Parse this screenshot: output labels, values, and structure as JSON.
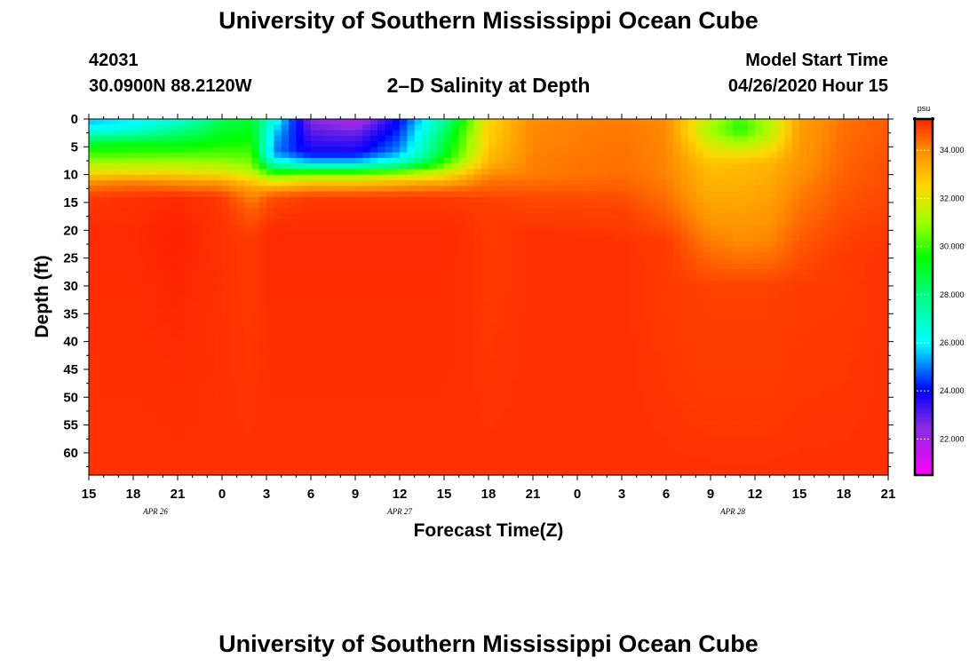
{
  "header": {
    "title_top": "University of Southern Mississippi Ocean Cube",
    "station_id": "42031",
    "station_coords": "30.0900N 88.2120W",
    "chart_title": "2–D Salinity at Depth",
    "model_start_label": "Model Start Time",
    "model_start_value": "04/26/2020 Hour 15",
    "title_bottom": "University of Southern Mississippi Ocean Cube"
  },
  "chart_data": {
    "type": "heatmap",
    "title": "2–D Salinity at Depth",
    "xlabel": "Forecast Time(Z)",
    "ylabel": "Depth (ft)",
    "x_ticks": [
      "15",
      "18",
      "21",
      "0",
      "3",
      "6",
      "9",
      "12",
      "15",
      "18",
      "21",
      "0",
      "3",
      "6",
      "9",
      "12",
      "15",
      "18",
      "21"
    ],
    "x_hours": [
      0,
      3,
      6,
      9,
      12,
      15,
      18,
      21,
      24,
      27,
      30,
      33,
      36,
      39,
      42,
      45,
      48,
      51,
      54
    ],
    "x_range_hours": [
      0,
      54
    ],
    "date_labels": [
      {
        "text": "APR 26",
        "hour": 4.5
      },
      {
        "text": "APR 27",
        "hour": 21
      },
      {
        "text": "APR 28",
        "hour": 43.5
      }
    ],
    "y_ticks": [
      0,
      5,
      10,
      15,
      20,
      25,
      30,
      35,
      40,
      45,
      50,
      55,
      60
    ],
    "y_range_ft": [
      0,
      64
    ],
    "colorbar": {
      "unit": "psu",
      "ticks": [
        "34.000",
        "32.000",
        "30.000",
        "28.000",
        "26.000",
        "24.000",
        "22.000"
      ],
      "tick_values": [
        34,
        32,
        30,
        28,
        26,
        24,
        22
      ],
      "range": [
        20.5,
        35.3
      ],
      "stops": [
        {
          "v": 20.5,
          "color": "#ff00ff"
        },
        {
          "v": 22.5,
          "color": "#8a2be2"
        },
        {
          "v": 24.0,
          "color": "#0000ff"
        },
        {
          "v": 26.0,
          "color": "#00ffff"
        },
        {
          "v": 28.0,
          "color": "#00ff80"
        },
        {
          "v": 29.5,
          "color": "#00ff00"
        },
        {
          "v": 31.0,
          "color": "#a0ff00"
        },
        {
          "v": 32.5,
          "color": "#ffd700"
        },
        {
          "v": 34.0,
          "color": "#ff8c00"
        },
        {
          "v": 35.3,
          "color": "#ff2200"
        }
      ]
    },
    "columns": [
      {
        "h": 0,
        "p": [
          [
            0,
            25.5
          ],
          [
            2,
            26.2
          ],
          [
            4,
            28.8
          ],
          [
            7,
            30.5
          ],
          [
            9.5,
            32.2
          ],
          [
            11.5,
            34.0
          ],
          [
            14,
            35.0
          ],
          [
            20,
            35.2
          ],
          [
            64,
            35.1
          ]
        ]
      },
      {
        "h": 3,
        "p": [
          [
            0,
            25.8
          ],
          [
            2,
            26.6
          ],
          [
            4,
            29.0
          ],
          [
            7,
            30.5
          ],
          [
            9.5,
            32.3
          ],
          [
            11.5,
            34.2
          ],
          [
            14,
            35.1
          ],
          [
            20,
            35.2
          ],
          [
            64,
            35.1
          ]
        ]
      },
      {
        "h": 6,
        "p": [
          [
            0,
            26.5
          ],
          [
            3,
            28.5
          ],
          [
            6,
            30.0
          ],
          [
            9,
            31.8
          ],
          [
            11.5,
            34.0
          ],
          [
            14,
            35.2
          ],
          [
            20,
            35.3
          ],
          [
            64,
            35.1
          ]
        ]
      },
      {
        "h": 9,
        "p": [
          [
            0,
            28.5
          ],
          [
            4,
            29.5
          ],
          [
            7,
            30.5
          ],
          [
            9.5,
            32.0
          ],
          [
            11.5,
            33.8
          ],
          [
            14,
            35.0
          ],
          [
            20,
            35.1
          ],
          [
            64,
            35.1
          ]
        ]
      },
      {
        "h": 11,
        "p": [
          [
            0,
            29.0
          ],
          [
            5,
            29.8
          ],
          [
            9,
            31.0
          ],
          [
            11,
            32.6
          ],
          [
            13,
            33.8
          ],
          [
            16,
            34.5
          ],
          [
            21,
            35.0
          ],
          [
            64,
            35.1
          ]
        ]
      },
      {
        "h": 12.5,
        "p": [
          [
            0,
            26.5
          ],
          [
            3,
            25.5
          ],
          [
            6,
            25.0
          ],
          [
            8,
            26.8
          ],
          [
            10,
            30.5
          ],
          [
            12,
            33.0
          ],
          [
            14,
            34.8
          ],
          [
            20,
            35.2
          ],
          [
            64,
            35.1
          ]
        ]
      },
      {
        "h": 15,
        "p": [
          [
            0,
            22.5
          ],
          [
            3,
            23.2
          ],
          [
            6,
            23.8
          ],
          [
            8,
            25.8
          ],
          [
            10,
            31.0
          ],
          [
            12,
            33.5
          ],
          [
            14,
            35.0
          ],
          [
            20,
            35.2
          ],
          [
            64,
            35.1
          ]
        ]
      },
      {
        "h": 18,
        "p": [
          [
            0,
            21.8
          ],
          [
            3,
            23.0
          ],
          [
            6,
            23.8
          ],
          [
            8,
            25.8
          ],
          [
            10,
            31.0
          ],
          [
            12,
            33.5
          ],
          [
            14,
            35.0
          ],
          [
            20,
            35.2
          ],
          [
            64,
            35.1
          ]
        ]
      },
      {
        "h": 21,
        "p": [
          [
            0,
            24.0
          ],
          [
            3,
            24.5
          ],
          [
            6,
            25.2
          ],
          [
            8,
            27.0
          ],
          [
            10,
            31.5
          ],
          [
            12,
            33.8
          ],
          [
            14,
            35.0
          ],
          [
            20,
            35.2
          ],
          [
            64,
            35.1
          ]
        ]
      },
      {
        "h": 24,
        "p": [
          [
            0,
            27.5
          ],
          [
            3,
            28.5
          ],
          [
            6,
            29.0
          ],
          [
            8,
            30.0
          ],
          [
            10,
            32.2
          ],
          [
            12,
            34.0
          ],
          [
            14,
            35.0
          ],
          [
            20,
            35.2
          ],
          [
            64,
            35.1
          ]
        ]
      },
      {
        "h": 27,
        "p": [
          [
            0,
            32.5
          ],
          [
            5,
            32.8
          ],
          [
            8,
            33.2
          ],
          [
            10,
            34.0
          ],
          [
            12,
            34.5
          ],
          [
            15,
            35.0
          ],
          [
            64,
            35.1
          ]
        ]
      },
      {
        "h": 30,
        "p": [
          [
            0,
            34.0
          ],
          [
            10,
            34.2
          ],
          [
            14,
            34.8
          ],
          [
            20,
            35.1
          ],
          [
            64,
            35.1
          ]
        ]
      },
      {
        "h": 36,
        "p": [
          [
            0,
            34.2
          ],
          [
            10,
            34.4
          ],
          [
            16,
            34.9
          ],
          [
            22,
            35.1
          ],
          [
            64,
            35.1
          ]
        ]
      },
      {
        "h": 39,
        "p": [
          [
            0,
            34.0
          ],
          [
            10,
            34.1
          ],
          [
            16,
            34.5
          ],
          [
            22,
            35.0
          ],
          [
            64,
            35.1
          ]
        ]
      },
      {
        "h": 42,
        "p": [
          [
            0,
            31.5
          ],
          [
            2,
            31.0
          ],
          [
            5,
            32.0
          ],
          [
            8,
            32.9
          ],
          [
            14,
            33.4
          ],
          [
            22,
            34.2
          ],
          [
            30,
            34.9
          ],
          [
            64,
            35.1
          ]
        ]
      },
      {
        "h": 44,
        "p": [
          [
            0,
            30.0
          ],
          [
            2,
            29.8
          ],
          [
            5,
            31.5
          ],
          [
            8,
            33.0
          ],
          [
            14,
            33.4
          ],
          [
            22,
            34.0
          ],
          [
            30,
            34.9
          ],
          [
            64,
            35.1
          ]
        ]
      },
      {
        "h": 46,
        "p": [
          [
            0,
            31.5
          ],
          [
            2,
            31.2
          ],
          [
            5,
            32.2
          ],
          [
            8,
            33.2
          ],
          [
            14,
            33.6
          ],
          [
            22,
            34.1
          ],
          [
            30,
            34.9
          ],
          [
            64,
            35.1
          ]
        ]
      },
      {
        "h": 48,
        "p": [
          [
            0,
            33.6
          ],
          [
            8,
            33.8
          ],
          [
            14,
            34.2
          ],
          [
            22,
            34.6
          ],
          [
            30,
            35.0
          ],
          [
            64,
            35.1
          ]
        ]
      },
      {
        "h": 51,
        "p": [
          [
            0,
            34.3
          ],
          [
            12,
            34.6
          ],
          [
            24,
            35.0
          ],
          [
            64,
            35.1
          ]
        ]
      },
      {
        "h": 54,
        "p": [
          [
            0,
            34.6
          ],
          [
            12,
            34.8
          ],
          [
            24,
            35.1
          ],
          [
            64,
            35.1
          ]
        ]
      }
    ]
  }
}
